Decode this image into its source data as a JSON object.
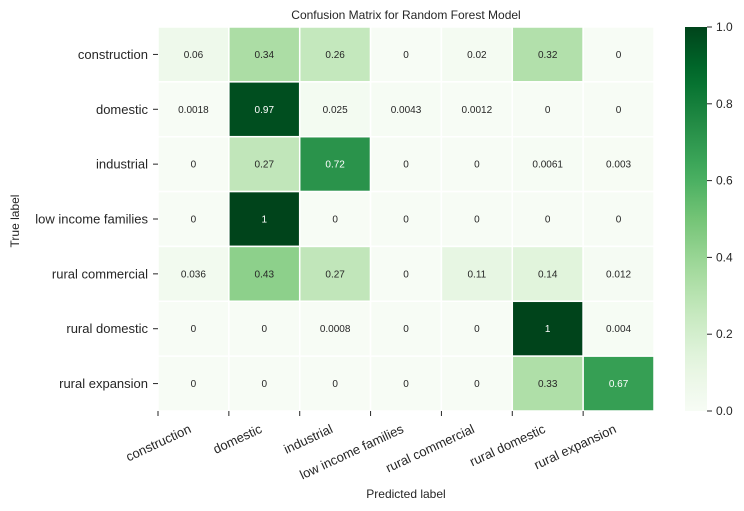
{
  "chart_data": {
    "type": "heatmap",
    "title": "Confusion Matrix for Random Forest Model",
    "xlabel": "Predicted label",
    "ylabel": "True label",
    "x_categories": [
      "construction",
      "domestic",
      "industrial",
      "low income families",
      "rural commercial",
      "rural domestic",
      "rural expansion"
    ],
    "y_categories": [
      "construction",
      "domestic",
      "industrial",
      "low income families",
      "rural commercial",
      "rural domestic",
      "rural expansion"
    ],
    "values": [
      [
        0.06,
        0.34,
        0.26,
        0,
        0.02,
        0.32,
        0
      ],
      [
        0.0018,
        0.97,
        0.025,
        0.0043,
        0.0012,
        0,
        0
      ],
      [
        0,
        0.27,
        0.72,
        0,
        0,
        0.0061,
        0.003
      ],
      [
        0,
        1,
        0,
        0,
        0,
        0,
        0
      ],
      [
        0.036,
        0.43,
        0.27,
        0,
        0.11,
        0.14,
        0.012
      ],
      [
        0,
        0,
        0.0008,
        0,
        0,
        1,
        0.004
      ],
      [
        0,
        0,
        0,
        0,
        0,
        0.33,
        0.67
      ]
    ],
    "cell_labels": [
      [
        "0.06",
        "0.34",
        "0.26",
        "0",
        "0.02",
        "0.32",
        "0"
      ],
      [
        "0.0018",
        "0.97",
        "0.025",
        "0.0043",
        "0.0012",
        "0",
        "0"
      ],
      [
        "0",
        "0.27",
        "0.72",
        "0",
        "0",
        "0.0061",
        "0.003"
      ],
      [
        "0",
        "1",
        "0",
        "0",
        "0",
        "0",
        "0"
      ],
      [
        "0.036",
        "0.43",
        "0.27",
        "0",
        "0.11",
        "0.14",
        "0.012"
      ],
      [
        "0",
        "0",
        "0.0008",
        "0",
        "0",
        "1",
        "0.004"
      ],
      [
        "0",
        "0",
        "0",
        "0",
        "0",
        "0.33",
        "0.67"
      ]
    ],
    "colorscale": "Greens",
    "color_range": [
      0.0,
      1.0
    ],
    "colorbar_ticks": [
      "0.0",
      "0.2",
      "0.4",
      "0.6",
      "0.8",
      "1.0"
    ],
    "colorbar_tick_values": [
      0.0,
      0.2,
      0.4,
      0.6,
      0.8,
      1.0
    ],
    "grid": false,
    "legend": "colorbar-right"
  }
}
